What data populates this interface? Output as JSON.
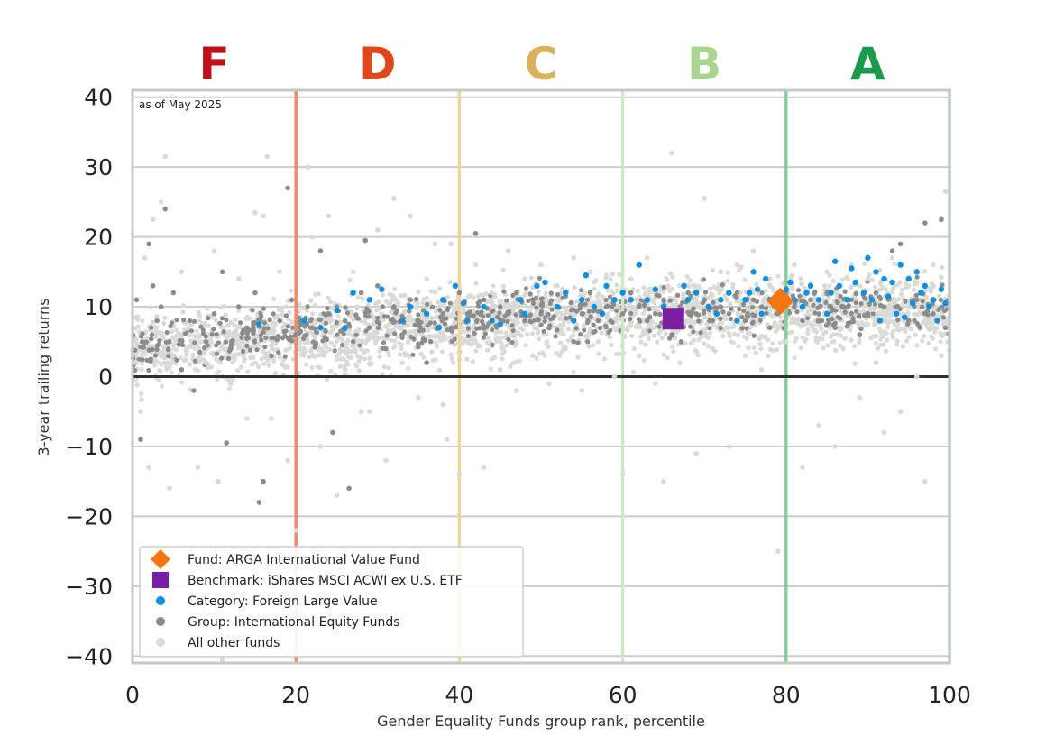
{
  "chart_data": {
    "type": "scatter",
    "title": "",
    "xlabel": "Gender Equality Funds group rank, percentile",
    "ylabel": "3-year trailing returns",
    "xlim": [
      0,
      100
    ],
    "ylim": [
      -41,
      41
    ],
    "x_ticks": [
      "0",
      "20",
      "40",
      "60",
      "80",
      "100"
    ],
    "y_ticks": [
      "40",
      "30",
      "20",
      "10",
      "0",
      "−10",
      "−20",
      "−30",
      "−40"
    ],
    "annotation": "as of May 2025",
    "grid": true,
    "legend_position": "lower-left",
    "grades": [
      {
        "label": "F",
        "x_center": 10,
        "color": "#c0101a"
      },
      {
        "label": "D",
        "x_center": 30,
        "color": "#e0471a"
      },
      {
        "label": "C",
        "x_center": 50,
        "color": "#d9b25a"
      },
      {
        "label": "B",
        "x_center": 70,
        "color": "#a9d68f"
      },
      {
        "label": "A",
        "x_center": 90,
        "color": "#1a9a4a"
      }
    ],
    "grade_boundaries": [
      {
        "x": 20,
        "color": "#ee8a6e"
      },
      {
        "x": 40,
        "color": "#f1d59a"
      },
      {
        "x": 60,
        "color": "#cfe9c0"
      },
      {
        "x": 80,
        "color": "#86cf9d"
      },
      {
        "x": 100,
        "color": "#9ed9b2"
      }
    ],
    "series": [
      {
        "name": "Fund: ARGA International Value Fund",
        "marker": "diamond",
        "color": "#f5760f",
        "points": [
          [
            79.3,
            10.8
          ]
        ]
      },
      {
        "name": "Benchmark: iShares MSCI ACWI ex U.S. ETF",
        "marker": "square",
        "color": "#7b1fa2",
        "points": [
          [
            66.2,
            8.3
          ]
        ]
      },
      {
        "name": "Category: Foreign Large Value",
        "marker": "dot",
        "color": "#0a8fe6",
        "points": [
          [
            15.5,
            7.5
          ],
          [
            21,
            8
          ],
          [
            23,
            7
          ],
          [
            25,
            9.5
          ],
          [
            26,
            7
          ],
          [
            27,
            12
          ],
          [
            29,
            11
          ],
          [
            30.5,
            12.5
          ],
          [
            33,
            8
          ],
          [
            34,
            10
          ],
          [
            36,
            9
          ],
          [
            37.5,
            7
          ],
          [
            38,
            11
          ],
          [
            39.5,
            13
          ],
          [
            40.5,
            10.5
          ],
          [
            41,
            8
          ],
          [
            43,
            10
          ],
          [
            44,
            8
          ],
          [
            45,
            7.5
          ],
          [
            47.5,
            11
          ],
          [
            48,
            9
          ],
          [
            49.5,
            13
          ],
          [
            50.5,
            13.5
          ],
          [
            52,
            10
          ],
          [
            53,
            12
          ],
          [
            54,
            8
          ],
          [
            55,
            11
          ],
          [
            55.5,
            14.5
          ],
          [
            56.5,
            10
          ],
          [
            57.5,
            9
          ],
          [
            58,
            13
          ],
          [
            59,
            11
          ],
          [
            60,
            12
          ],
          [
            61,
            11
          ],
          [
            62,
            16
          ],
          [
            63,
            11
          ],
          [
            64,
            12.5
          ],
          [
            65,
            10
          ],
          [
            66.5,
            9
          ],
          [
            67.5,
            13
          ],
          [
            68,
            11
          ],
          [
            69,
            12
          ],
          [
            70.5,
            10
          ],
          [
            71.5,
            9
          ],
          [
            72,
            11
          ],
          [
            73,
            12
          ],
          [
            74,
            8
          ],
          [
            75,
            11
          ],
          [
            75.5,
            12
          ],
          [
            76,
            15
          ],
          [
            76.5,
            12.5
          ],
          [
            77,
            9
          ],
          [
            77.5,
            14
          ],
          [
            78,
            11
          ],
          [
            80,
            12.5
          ],
          [
            80.5,
            13.5
          ],
          [
            81,
            11
          ],
          [
            82,
            10
          ],
          [
            82.5,
            12
          ],
          [
            83,
            13
          ],
          [
            84,
            11
          ],
          [
            85,
            9
          ],
          [
            85.5,
            12
          ],
          [
            86,
            16.5
          ],
          [
            86.5,
            13
          ],
          [
            87.5,
            11
          ],
          [
            88,
            15.5
          ],
          [
            88.5,
            13.5
          ],
          [
            89.5,
            12
          ],
          [
            90,
            17
          ],
          [
            90.5,
            11
          ],
          [
            91,
            15
          ],
          [
            91.5,
            8
          ],
          [
            92,
            14
          ],
          [
            92.5,
            11.5
          ],
          [
            93,
            13.5
          ],
          [
            93.5,
            9
          ],
          [
            94,
            16
          ],
          [
            94.5,
            8.5
          ],
          [
            95,
            14
          ],
          [
            95.5,
            10.5
          ],
          [
            96,
            15
          ],
          [
            96.5,
            12
          ],
          [
            97,
            13
          ],
          [
            97.5,
            10
          ],
          [
            98,
            11
          ],
          [
            98.5,
            8
          ],
          [
            99,
            12.5
          ],
          [
            99.5,
            10.5
          ]
        ]
      },
      {
        "name": "Group: International Equity Funds",
        "marker": "dot",
        "color": "#8c8c8c",
        "points": [
          [
            0.5,
            11
          ],
          [
            1,
            -9
          ],
          [
            2,
            19
          ],
          [
            2.5,
            13
          ],
          [
            3,
            8
          ],
          [
            3.5,
            10
          ],
          [
            4,
            24
          ],
          [
            4.5,
            5
          ],
          [
            5,
            12
          ],
          [
            6,
            1
          ],
          [
            7,
            8
          ],
          [
            7.5,
            -2
          ],
          [
            9,
            5
          ],
          [
            10,
            9
          ],
          [
            11,
            15
          ],
          [
            11.5,
            -9.5
          ],
          [
            12,
            4
          ],
          [
            13,
            10
          ],
          [
            14,
            7
          ],
          [
            15,
            12
          ],
          [
            15.5,
            -18
          ],
          [
            16,
            -15
          ],
          [
            17,
            3
          ],
          [
            18,
            8
          ],
          [
            19,
            27
          ],
          [
            19.5,
            11
          ],
          [
            20,
            6
          ],
          [
            22,
            7
          ],
          [
            23,
            18
          ],
          [
            24,
            9
          ],
          [
            24.5,
            -8
          ],
          [
            25,
            10
          ],
          [
            26,
            8
          ],
          [
            26.5,
            -16
          ],
          [
            27,
            5
          ],
          [
            28,
            12
          ],
          [
            28.5,
            19.5
          ],
          [
            29,
            7
          ],
          [
            30,
            13
          ],
          [
            31,
            4
          ],
          [
            32,
            10
          ],
          [
            33,
            6
          ],
          [
            34,
            11
          ],
          [
            35,
            8
          ],
          [
            36,
            2
          ],
          [
            36.5,
            5
          ],
          [
            38,
            9
          ],
          [
            39,
            7
          ],
          [
            40,
            12
          ],
          [
            41,
            9
          ],
          [
            42,
            20.5
          ],
          [
            43,
            11
          ],
          [
            44,
            8
          ],
          [
            45,
            10
          ],
          [
            46,
            9
          ],
          [
            47,
            12
          ],
          [
            48,
            8
          ],
          [
            49,
            11
          ],
          [
            50,
            9
          ],
          [
            51,
            7
          ],
          [
            52,
            10
          ],
          [
            53,
            11.5
          ],
          [
            54,
            5
          ],
          [
            55,
            9
          ],
          [
            56,
            12
          ],
          [
            57,
            8
          ],
          [
            58,
            10
          ],
          [
            59,
            11
          ],
          [
            60,
            9
          ],
          [
            61,
            12
          ],
          [
            62,
            10
          ],
          [
            63,
            8
          ],
          [
            64,
            9
          ],
          [
            65,
            11
          ],
          [
            66,
            6
          ],
          [
            67,
            10
          ],
          [
            68,
            12
          ],
          [
            69,
            9
          ],
          [
            70,
            11
          ],
          [
            71,
            8
          ],
          [
            72,
            10
          ],
          [
            73,
            9
          ],
          [
            74,
            12
          ],
          [
            75,
            8
          ],
          [
            76,
            11
          ],
          [
            77,
            10
          ],
          [
            78,
            7
          ],
          [
            79,
            9
          ],
          [
            80,
            12
          ],
          [
            81,
            10
          ],
          [
            82,
            8
          ],
          [
            83,
            11
          ],
          [
            84,
            9
          ],
          [
            85,
            12
          ],
          [
            86,
            7
          ],
          [
            87,
            10
          ],
          [
            88,
            11
          ],
          [
            89,
            6
          ],
          [
            90,
            9
          ],
          [
            91,
            12
          ],
          [
            92,
            10
          ],
          [
            93,
            18
          ],
          [
            94,
            19
          ],
          [
            95,
            8
          ],
          [
            96,
            11
          ],
          [
            97,
            22
          ],
          [
            98,
            9
          ],
          [
            99,
            22.5
          ],
          [
            99.5,
            7
          ]
        ]
      },
      {
        "name": "All other funds",
        "marker": "dot",
        "color": "#d9dcd6",
        "points": [
          [
            0.5,
            2
          ],
          [
            1,
            -5
          ],
          [
            1.5,
            17
          ],
          [
            2,
            -13
          ],
          [
            2.5,
            22.5
          ],
          [
            3.5,
            25
          ],
          [
            4,
            31.5
          ],
          [
            4.5,
            -16
          ],
          [
            5,
            3
          ],
          [
            6,
            15
          ],
          [
            7,
            6
          ],
          [
            8,
            -13
          ],
          [
            9,
            2
          ],
          [
            10,
            18
          ],
          [
            10.5,
            -15
          ],
          [
            11,
            -40.5
          ],
          [
            12,
            -1
          ],
          [
            13,
            14
          ],
          [
            14,
            -6
          ],
          [
            15,
            23.5
          ],
          [
            15.5,
            -18
          ],
          [
            16,
            23
          ],
          [
            16.5,
            31.5
          ],
          [
            17,
            -6
          ],
          [
            18,
            15
          ],
          [
            19,
            -12
          ],
          [
            19.5,
            -28
          ],
          [
            20,
            -22
          ],
          [
            21,
            4
          ],
          [
            21.5,
            30
          ],
          [
            22,
            20
          ],
          [
            23,
            -10
          ],
          [
            24,
            23
          ],
          [
            25,
            -17
          ],
          [
            26,
            1
          ],
          [
            27,
            15
          ],
          [
            28,
            -5
          ],
          [
            29,
            -5
          ],
          [
            30,
            21
          ],
          [
            31,
            -12
          ],
          [
            32,
            25.5
          ],
          [
            33,
            2
          ],
          [
            34,
            23
          ],
          [
            35,
            -3
          ],
          [
            36,
            14
          ],
          [
            37,
            19
          ],
          [
            38,
            -4
          ],
          [
            38.5,
            -9
          ],
          [
            39,
            19
          ],
          [
            40,
            -14
          ],
          [
            41,
            5
          ],
          [
            42,
            16
          ],
          [
            43,
            -13
          ],
          [
            44,
            12
          ],
          [
            45,
            1
          ],
          [
            46,
            18
          ],
          [
            47,
            -2
          ],
          [
            48,
            14
          ],
          [
            49,
            3
          ],
          [
            50,
            16
          ],
          [
            51,
            -1
          ],
          [
            52,
            13
          ],
          [
            53,
            4
          ],
          [
            54,
            17
          ],
          [
            55,
            -2
          ],
          [
            56,
            15
          ],
          [
            57,
            5
          ],
          [
            58,
            13
          ],
          [
            59,
            0
          ],
          [
            60,
            -14
          ],
          [
            61,
            14
          ],
          [
            62,
            3
          ],
          [
            63,
            17
          ],
          [
            64,
            -1
          ],
          [
            65,
            -15
          ],
          [
            66,
            32
          ],
          [
            67,
            2
          ],
          [
            68,
            13
          ],
          [
            69,
            -11
          ],
          [
            70,
            25.5
          ],
          [
            71,
            4
          ],
          [
            72,
            15
          ],
          [
            73,
            -10
          ],
          [
            74,
            16
          ],
          [
            75,
            3
          ],
          [
            76,
            18
          ],
          [
            77,
            1
          ],
          [
            78,
            14
          ],
          [
            79,
            -25
          ],
          [
            80,
            5
          ],
          [
            81,
            16
          ],
          [
            82,
            -13
          ],
          [
            83,
            13
          ],
          [
            84,
            -7
          ],
          [
            85,
            15
          ],
          [
            86,
            -10
          ],
          [
            87,
            4
          ],
          [
            88,
            16
          ],
          [
            89,
            -3
          ],
          [
            90,
            14
          ],
          [
            91,
            2
          ],
          [
            92,
            -8
          ],
          [
            93,
            17
          ],
          [
            94,
            -5
          ],
          [
            95,
            13
          ],
          [
            96,
            0
          ],
          [
            97,
            -15
          ],
          [
            98,
            16
          ],
          [
            99,
            3
          ],
          [
            99.5,
            26.5
          ]
        ]
      }
    ]
  }
}
